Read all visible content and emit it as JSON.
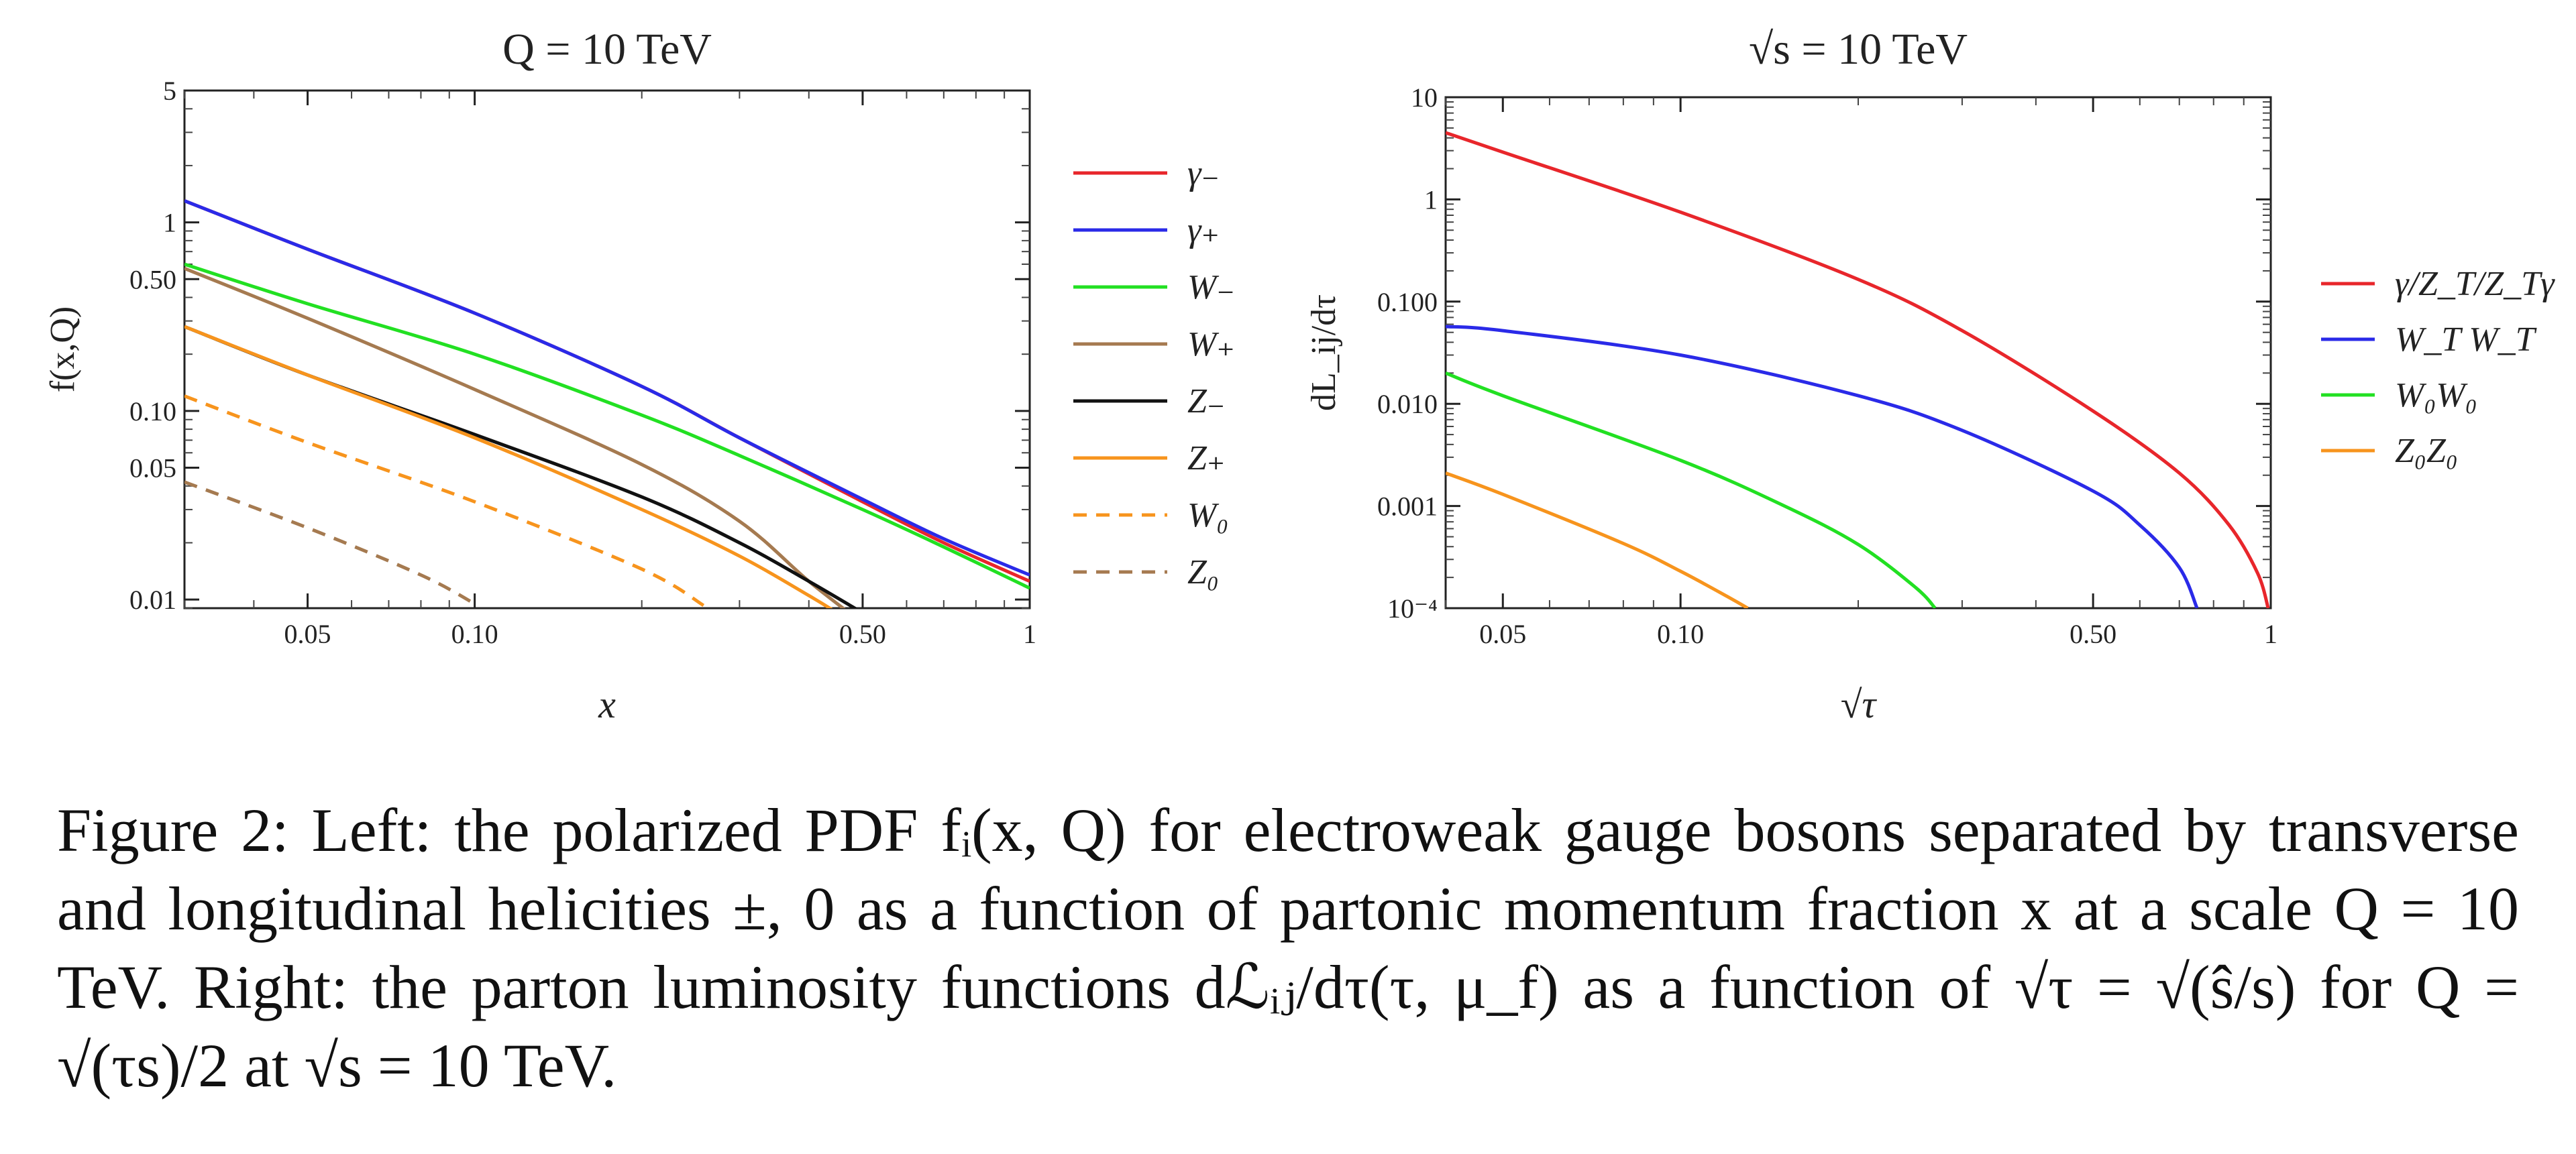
{
  "chart_data": [
    {
      "type": "line",
      "title": "Q = 10 TeV",
      "xlabel": "x",
      "ylabel": "f(x,Q)",
      "xscale": "log",
      "yscale": "log",
      "xlim": [
        0.03,
        1
      ],
      "ylim": [
        0.009,
        5
      ],
      "xticks": [
        0.05,
        0.1,
        0.5,
        1
      ],
      "xtick_labels": [
        "0.05",
        "0.10",
        "0.50",
        "1"
      ],
      "yticks": [
        0.01,
        0.05,
        0.1,
        0.5,
        1,
        5
      ],
      "ytick_labels": [
        "0.01",
        "0.05",
        "0.10",
        "0.50",
        "1",
        "5"
      ],
      "legend_position": "right",
      "series": [
        {
          "name": "γ₋",
          "color": "#e8262b",
          "dashed": false,
          "x": [
            0.03,
            0.05,
            0.1,
            0.2,
            0.3,
            0.5,
            0.7,
            1.0
          ],
          "y": [
            1.3,
            0.72,
            0.33,
            0.135,
            0.072,
            0.033,
            0.02,
            0.0125
          ]
        },
        {
          "name": "γ₊",
          "color": "#2a2ae8",
          "dashed": false,
          "x": [
            0.03,
            0.05,
            0.1,
            0.2,
            0.3,
            0.5,
            0.7,
            1.0
          ],
          "y": [
            1.3,
            0.72,
            0.33,
            0.135,
            0.072,
            0.034,
            0.021,
            0.0135
          ]
        },
        {
          "name": "W₋",
          "color": "#22e022",
          "dashed": false,
          "x": [
            0.03,
            0.05,
            0.1,
            0.2,
            0.3,
            0.5,
            0.7,
            1.0
          ],
          "y": [
            0.6,
            0.37,
            0.2,
            0.095,
            0.058,
            0.03,
            0.019,
            0.0115
          ]
        },
        {
          "name": "W₊",
          "color": "#a57a50",
          "dashed": false,
          "x": [
            0.03,
            0.05,
            0.1,
            0.2,
            0.3,
            0.4,
            0.5
          ],
          "y": [
            0.57,
            0.31,
            0.13,
            0.052,
            0.026,
            0.0125,
            0.0075
          ]
        },
        {
          "name": "Z₋",
          "color": "#111111",
          "dashed": false,
          "x": [
            0.03,
            0.05,
            0.1,
            0.2,
            0.3,
            0.4,
            0.5
          ],
          "y": [
            0.28,
            0.155,
            0.075,
            0.035,
            0.02,
            0.0125,
            0.0085
          ]
        },
        {
          "name": "Z₊",
          "color": "#f7941d",
          "dashed": false,
          "x": [
            0.03,
            0.05,
            0.1,
            0.2,
            0.3,
            0.4,
            0.45
          ],
          "y": [
            0.28,
            0.155,
            0.072,
            0.03,
            0.017,
            0.0105,
            0.0085
          ]
        },
        {
          "name": "W₀",
          "color": "#f7941d",
          "dashed": true,
          "x": [
            0.03,
            0.05,
            0.1,
            0.2,
            0.26
          ],
          "y": [
            0.12,
            0.068,
            0.033,
            0.0145,
            0.0092
          ]
        },
        {
          "name": "Z₀",
          "color": "#a57a50",
          "dashed": true,
          "x": [
            0.03,
            0.05,
            0.08,
            0.1
          ],
          "y": [
            0.042,
            0.024,
            0.0135,
            0.0095
          ]
        }
      ]
    },
    {
      "type": "line",
      "title": "√s = 10 TeV",
      "xlabel": "√τ",
      "ylabel": "dL_ij/dτ",
      "xscale": "log",
      "yscale": "log",
      "xlim": [
        0.04,
        1
      ],
      "ylim": [
        0.0001,
        10
      ],
      "xticks": [
        0.05,
        0.1,
        0.5,
        1
      ],
      "xtick_labels": [
        "0.05",
        "0.10",
        "0.50",
        "1"
      ],
      "yticks": [
        0.0001,
        0.001,
        0.01,
        0.1,
        1,
        10
      ],
      "ytick_labels": [
        "10⁻⁴",
        "0.001",
        "0.010",
        "0.100",
        "1",
        "10"
      ],
      "legend_position": "right",
      "series": [
        {
          "name": "γ/Z_T/Z_Tγ",
          "color": "#e8262b",
          "dashed": false,
          "x": [
            0.04,
            0.05,
            0.1,
            0.2,
            0.3,
            0.5,
            0.7,
            0.85,
            0.95,
            0.99
          ],
          "y": [
            4.5,
            2.9,
            0.75,
            0.165,
            0.052,
            0.0085,
            0.0021,
            0.00065,
            0.00022,
            0.0001
          ]
        },
        {
          "name": "W_T W_T",
          "color": "#2a2ae8",
          "dashed": false,
          "x": [
            0.04,
            0.05,
            0.1,
            0.2,
            0.3,
            0.5,
            0.6,
            0.7,
            0.75
          ],
          "y": [
            0.057,
            0.052,
            0.03,
            0.012,
            0.0055,
            0.0014,
            0.00065,
            0.00025,
            0.0001
          ]
        },
        {
          "name": "W₀W₀",
          "color": "#22e022",
          "dashed": false,
          "x": [
            0.04,
            0.05,
            0.1,
            0.15,
            0.2,
            0.25,
            0.27
          ],
          "y": [
            0.02,
            0.012,
            0.0028,
            0.001,
            0.00042,
            0.00016,
            0.0001
          ]
        },
        {
          "name": "Z₀Z₀",
          "color": "#f7941d",
          "dashed": false,
          "x": [
            0.04,
            0.05,
            0.08,
            0.1,
            0.12,
            0.13
          ],
          "y": [
            0.0021,
            0.0013,
            0.00043,
            0.00023,
            0.00013,
            0.0001
          ]
        }
      ]
    }
  ],
  "caption": "Figure 2: Left: the polarized PDF fᵢ(x, Q) for electroweak gauge bosons separated by transverse and longitudinal helicities ±, 0 as a function of partonic momentum fraction x at a scale Q = 10 TeV. Right: the parton luminosity functions dℒᵢⱼ/dτ(τ, μ_f) as a function of √τ = √(ŝ/s) for Q = √(τs)/2 at √s = 10 TeV."
}
